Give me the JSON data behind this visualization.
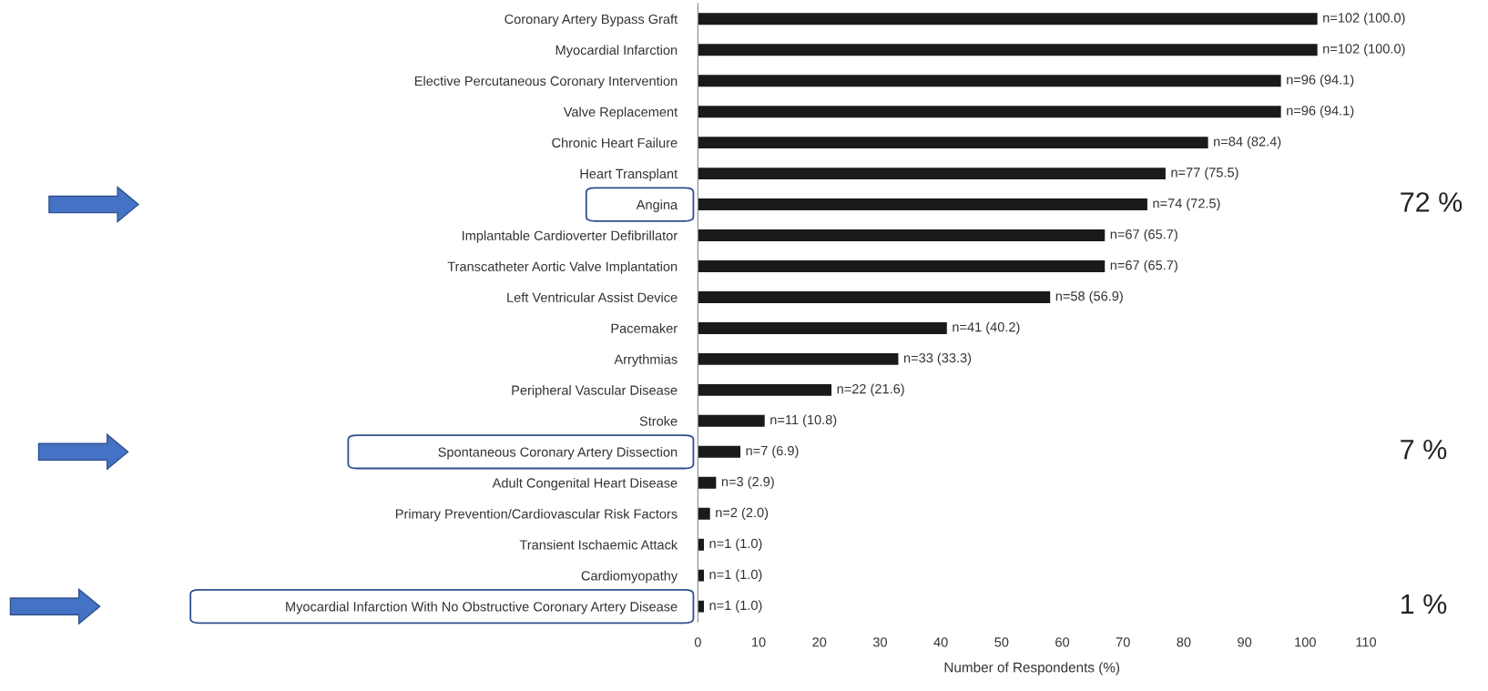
{
  "chart_data": {
    "type": "bar",
    "orientation": "horizontal",
    "xlabel": "Number of Respondents (%)",
    "categories": [
      "Coronary Artery Bypass Graft",
      "Myocardial Infarction",
      "Elective Percutaneous Coronary Intervention",
      "Valve Replacement",
      "Chronic Heart Failure",
      "Heart Transplant",
      "Angina",
      "Implantable Cardioverter Defibrillator",
      "Transcatheter Aortic Valve Implantation",
      "Left Ventricular Assist Device",
      "Pacemaker",
      "Arrythmias",
      "Peripheral Vascular Disease",
      "Stroke",
      "Spontaneous Coronary Artery Dissection",
      "Adult Congenital Heart Disease",
      "Primary Prevention/Cardiovascular Risk Factors",
      "Transient Ischaemic Attack",
      "Cardiomyopathy",
      "Myocardial Infarction With No Obstructive Coronary Artery Disease"
    ],
    "values": [
      102,
      102,
      96,
      96,
      84,
      77,
      74,
      67,
      67,
      58,
      41,
      33,
      22,
      11,
      7,
      3,
      2,
      1,
      1,
      1
    ],
    "value_labels": [
      "n=102 (100.0)",
      "n=102 (100.0)",
      "n=96 (94.1)",
      "n=96 (94.1)",
      "n=84 (82.4)",
      "n=77 (75.5)",
      "n=74 (72.5)",
      "n=67 (65.7)",
      "n=67 (65.7)",
      "n=58 (56.9)",
      "n=41 (40.2)",
      "n=33 (33.3)",
      "n=22 (21.6)",
      "n=11 (10.8)",
      "n=7 (6.9)",
      "n=3 (2.9)",
      "n=2 (2.0)",
      "n=1 (1.0)",
      "n=1 (1.0)",
      "n=1 (1.0)"
    ],
    "color": "#1a1a1a",
    "xlim": [
      0,
      110
    ],
    "xticks": [
      0,
      10,
      20,
      30,
      40,
      50,
      60,
      70,
      80,
      90,
      100,
      110
    ],
    "annotations": [
      "72 %",
      "7 %",
      "1 %"
    ],
    "grid": false
  }
}
